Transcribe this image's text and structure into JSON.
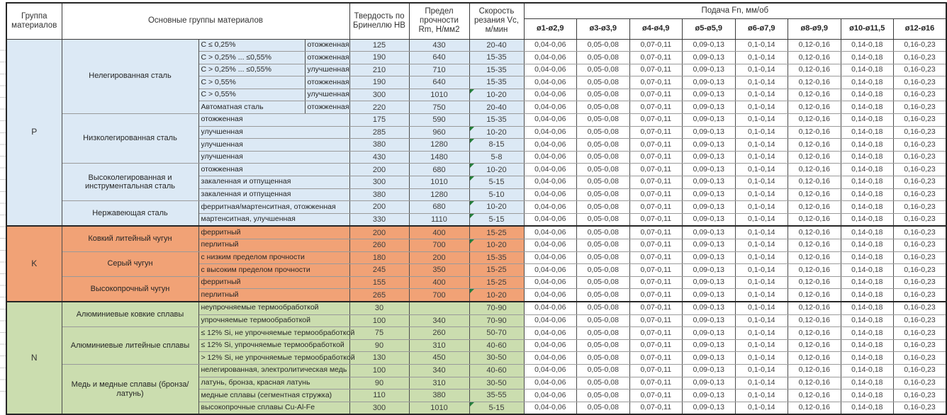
{
  "header": {
    "col_group": "Группа материалов",
    "col_main": "Основные группы материалов",
    "col_hb": "Твердость по Бринеллю HB",
    "col_rm": "Предел прочности Rm, Н/мм2",
    "col_vc": "Скорость резания Vc, м/мин",
    "col_feed": "Подача Fn, мм/об",
    "feed_diameters": [
      "ø1-ø2,9",
      "ø3-ø3,9",
      "ø4-ø4,9",
      "ø5-ø5,9",
      "ø6-ø7,9",
      "ø8-ø9,9",
      "ø10-ø11,5",
      "ø12-ø16"
    ]
  },
  "feed_values": [
    "0,04-0,06",
    "0,05-0,08",
    "0,07-0,11",
    "0,09-0,13",
    "0,1-0,14",
    "0,12-0,16",
    "0,14-0,18",
    "0,16-0,23"
  ],
  "colors": {
    "group_p": "#DCE9F5",
    "group_k": "#F1A276",
    "group_n": "#CBDDAF",
    "marker": "#26803C"
  },
  "groups": [
    {
      "code": "P",
      "cls": "g-p",
      "families": [
        {
          "name": "Нелегированная сталь",
          "rows": [
            {
              "spec": "C ≤ 0,25%",
              "state": "отожженная",
              "hb": "125",
              "rm": "430",
              "vc": "20-40",
              "marker": false
            },
            {
              "spec": "C > 0,25% ... ≤0,55%",
              "state": "отожженная",
              "hb": "190",
              "rm": "640",
              "vc": "15-35",
              "marker": false
            },
            {
              "spec": "C > 0,25% ... ≤0,55%",
              "state": "улучшенная",
              "hb": "210",
              "rm": "710",
              "vc": "15-35",
              "marker": false
            },
            {
              "spec": "C > 0,55%",
              "state": "отожженная",
              "hb": "190",
              "rm": "640",
              "vc": "15-35",
              "marker": false
            },
            {
              "spec": "C > 0,55%",
              "state": "улучшенная",
              "hb": "300",
              "rm": "1010",
              "vc": "10-20",
              "marker": true
            },
            {
              "spec": "Автоматная сталь",
              "state": "отожженная",
              "hb": "220",
              "rm": "750",
              "vc": "20-40",
              "marker": false
            }
          ]
        },
        {
          "name": "Низколегированная сталь",
          "rows": [
            {
              "spec": "отожженная",
              "state": null,
              "hb": "175",
              "rm": "590",
              "vc": "15-35",
              "marker": false
            },
            {
              "spec": "улучшенная",
              "state": null,
              "hb": "285",
              "rm": "960",
              "vc": "10-20",
              "marker": true
            },
            {
              "spec": "улучшенная",
              "state": null,
              "hb": "380",
              "rm": "1280",
              "vc": "8-15",
              "marker": true
            },
            {
              "spec": "улучшенная",
              "state": null,
              "hb": "430",
              "rm": "1480",
              "vc": "5-8",
              "marker": false
            }
          ]
        },
        {
          "name": "Высоколегированная и инструментальная сталь",
          "rows": [
            {
              "spec": "отожженная",
              "state": null,
              "hb": "200",
              "rm": "680",
              "vc": "10-20",
              "marker": true
            },
            {
              "spec": "закаленная и отпущенная",
              "state": null,
              "hb": "300",
              "rm": "1010",
              "vc": "5-15",
              "marker": true
            },
            {
              "spec": "закаленная и отпущенная",
              "state": null,
              "hb": "380",
              "rm": "1280",
              "vc": "5-10",
              "marker": false
            }
          ]
        },
        {
          "name": "Нержавеющая сталь",
          "rows": [
            {
              "spec": "ферритная/мартенситная, отожженная",
              "state": null,
              "hb": "200",
              "rm": "680",
              "vc": "10-20",
              "marker": true
            },
            {
              "spec": "мартенситная, улучшенная",
              "state": null,
              "hb": "330",
              "rm": "1110",
              "vc": "5-15",
              "marker": true
            }
          ]
        }
      ]
    },
    {
      "code": "K",
      "cls": "g-k",
      "families": [
        {
          "name": "Ковкий литейный чугун",
          "rows": [
            {
              "spec": "ферритный",
              "state": null,
              "hb": "200",
              "rm": "400",
              "vc": "15-25",
              "marker": false
            },
            {
              "spec": "перлитный",
              "state": null,
              "hb": "260",
              "rm": "700",
              "vc": "10-20",
              "marker": true
            }
          ]
        },
        {
          "name": "Серый чугун",
          "rows": [
            {
              "spec": "с низким пределом прочности",
              "state": null,
              "hb": "180",
              "rm": "200",
              "vc": "15-35",
              "marker": false
            },
            {
              "spec": "с высоким пределом прочности",
              "state": null,
              "hb": "245",
              "rm": "350",
              "vc": "15-25",
              "marker": false
            }
          ]
        },
        {
          "name": "Высокопрочный чугун",
          "rows": [
            {
              "spec": "ферритный",
              "state": null,
              "hb": "155",
              "rm": "400",
              "vc": "15-25",
              "marker": false
            },
            {
              "spec": "перлитный",
              "state": null,
              "hb": "265",
              "rm": "700",
              "vc": "10-20",
              "marker": true
            }
          ]
        }
      ]
    },
    {
      "code": "N",
      "cls": "g-n",
      "families": [
        {
          "name": "Алюминиевые ковкие сплавы",
          "rows": [
            {
              "spec": "неупрочняемые термообработкой",
              "state": null,
              "hb": "30",
              "rm": "",
              "vc": "70-90",
              "marker": false
            },
            {
              "spec": "упрочняемые термообработкой",
              "state": null,
              "hb": "100",
              "rm": "340",
              "vc": "70-90",
              "marker": false
            }
          ]
        },
        {
          "name": "Алюминиевые литейные сплавы",
          "rows": [
            {
              "spec": "≤ 12% Si, не упрочняемые термообработкой",
              "state": null,
              "hb": "75",
              "rm": "260",
              "vc": "50-70",
              "marker": false
            },
            {
              "spec": "≤ 12% Si, упрочняемые термообработкой",
              "state": null,
              "hb": "90",
              "rm": "310",
              "vc": "40-60",
              "marker": false
            },
            {
              "spec": "> 12% Si, не упрочняемые термообработкой",
              "state": null,
              "hb": "130",
              "rm": "450",
              "vc": "30-50",
              "marker": false
            }
          ]
        },
        {
          "name": "Медь и медные сплавы (бронза/латунь)",
          "rows": [
            {
              "spec": "нелегированная, электролитическая медь",
              "state": null,
              "hb": "100",
              "rm": "340",
              "vc": "40-60",
              "marker": false
            },
            {
              "spec": "латунь, бронза, красная латунь",
              "state": null,
              "hb": "90",
              "rm": "310",
              "vc": "30-50",
              "marker": false
            },
            {
              "spec": "медные сплавы (сегментная стружка)",
              "state": null,
              "hb": "110",
              "rm": "380",
              "vc": "35-55",
              "marker": false
            },
            {
              "spec": "высокопрочные сплавы Cu-Al-Fe",
              "state": null,
              "hb": "300",
              "rm": "1010",
              "vc": "5-15",
              "marker": true
            }
          ]
        }
      ]
    }
  ]
}
